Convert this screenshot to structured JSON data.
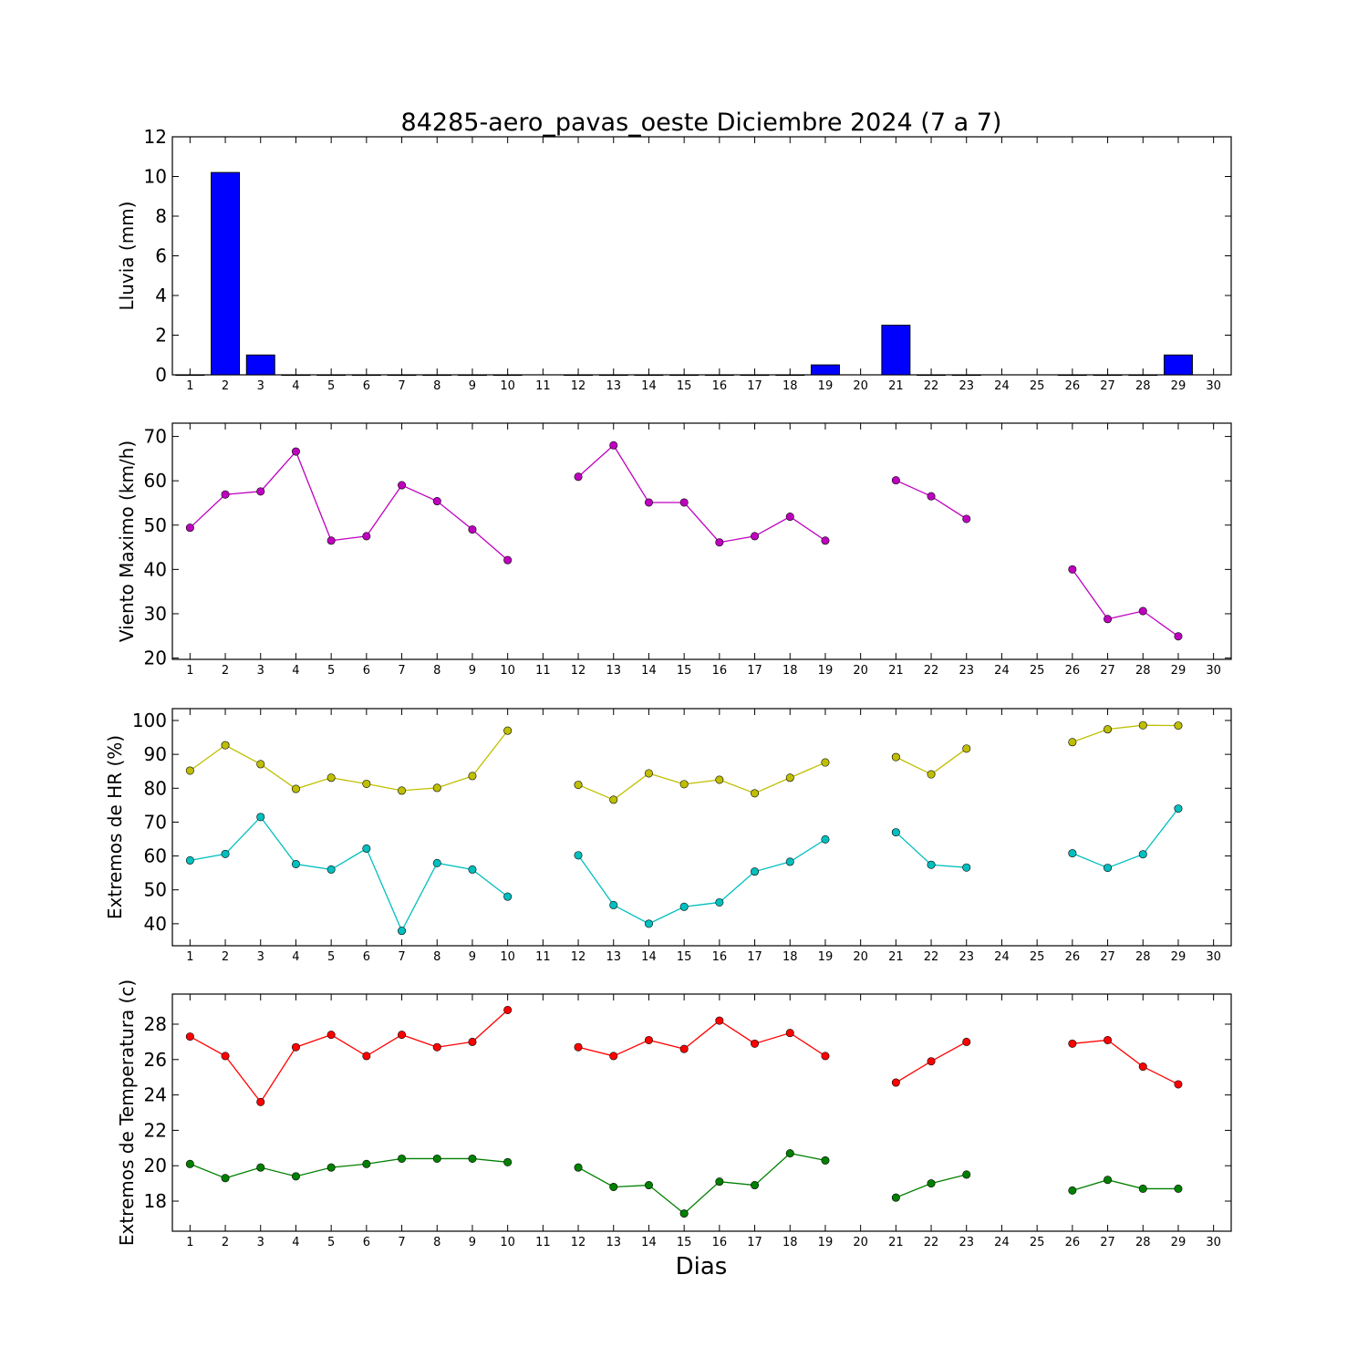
{
  "chart_data": {
    "title": "84285-aero_pavas_oeste Diciembre 2024  (7 a 7)",
    "xlabel": "Dias",
    "days": [
      1,
      2,
      3,
      4,
      5,
      6,
      7,
      8,
      9,
      10,
      11,
      12,
      13,
      14,
      15,
      16,
      17,
      18,
      19,
      20,
      21,
      22,
      23,
      24,
      25,
      26,
      27,
      28,
      29,
      30
    ],
    "xlim": [
      0.5,
      30.5
    ],
    "charts": [
      {
        "type": "bar",
        "ylabel": "Lluvia (mm)",
        "ylim": [
          0,
          12
        ],
        "yticks": [
          0,
          2,
          4,
          6,
          8,
          10,
          12
        ],
        "series": [
          {
            "color": "#0000ff",
            "values": [
              0,
              10.2,
              1.0,
              0,
              0,
              0,
              0,
              0,
              0,
              0,
              null,
              0,
              0,
              0,
              0,
              0,
              0,
              0,
              0.5,
              null,
              2.5,
              0,
              0,
              null,
              null,
              0,
              0,
              0,
              1.0,
              null
            ]
          }
        ]
      },
      {
        "type": "line",
        "ylabel": "Viento Maximo (km/h)",
        "ylim": [
          19.7,
          73
        ],
        "yticks": [
          20,
          30,
          40,
          50,
          60,
          70
        ],
        "series": [
          {
            "color": "#bf00bf",
            "values": [
              49.4,
              56.9,
              57.6,
              66.6,
              46.5,
              47.5,
              59,
              55.4,
              49,
              42.1,
              null,
              60.9,
              68,
              55.1,
              55.1,
              46.1,
              47.5,
              51.9,
              46.5,
              null,
              60.1,
              56.5,
              51.4,
              null,
              null,
              40,
              28.8,
              30.6,
              24.9,
              null
            ]
          }
        ]
      },
      {
        "type": "line",
        "ylabel": "Extremos de HR (%)",
        "ylim": [
          33.5,
          103.5
        ],
        "yticks": [
          40,
          50,
          60,
          70,
          80,
          90,
          100
        ],
        "series": [
          {
            "color": "#bfbf00",
            "values": [
              85.2,
              92.7,
              87.1,
              79.8,
              83.1,
              81.3,
              79.3,
              80.1,
              83.6,
              97,
              null,
              81,
              76.6,
              84.4,
              81.2,
              82.5,
              78.5,
              83.1,
              87.6,
              null,
              89.2,
              84.1,
              91.7,
              null,
              null,
              93.6,
              97.4,
              98.6,
              98.5,
              null
            ]
          },
          {
            "color": "#00bfbf",
            "values": [
              58.7,
              60.6,
              71.5,
              57.6,
              56,
              62.2,
              37.9,
              57.9,
              56,
              48,
              null,
              60.2,
              45.5,
              40,
              45,
              46.3,
              55.4,
              58.3,
              64.9,
              null,
              67,
              57.4,
              56.6,
              null,
              null,
              60.8,
              56.5,
              60.5,
              74,
              null
            ]
          }
        ]
      },
      {
        "type": "line",
        "ylabel": "Extremos de Temperatura (c)",
        "ylim": [
          16.3,
          29.7
        ],
        "yticks": [
          18,
          20,
          22,
          24,
          26,
          28
        ],
        "series": [
          {
            "color": "#ff0000",
            "values": [
              27.3,
              26.2,
              23.6,
              26.7,
              27.4,
              26.2,
              27.4,
              26.7,
              27,
              28.8,
              null,
              26.7,
              26.2,
              27.1,
              26.6,
              28.2,
              26.9,
              27.5,
              26.2,
              null,
              24.7,
              25.9,
              27,
              null,
              null,
              26.9,
              27.1,
              25.6,
              24.6,
              null
            ]
          },
          {
            "color": "#008000",
            "values": [
              20.1,
              19.3,
              19.9,
              19.4,
              19.9,
              20.1,
              20.4,
              20.4,
              20.4,
              20.2,
              null,
              19.9,
              18.8,
              18.9,
              17.3,
              19.1,
              18.9,
              20.7,
              20.3,
              null,
              18.2,
              19,
              19.5,
              null,
              null,
              18.6,
              19.2,
              18.7,
              18.7,
              null
            ]
          }
        ]
      }
    ]
  }
}
